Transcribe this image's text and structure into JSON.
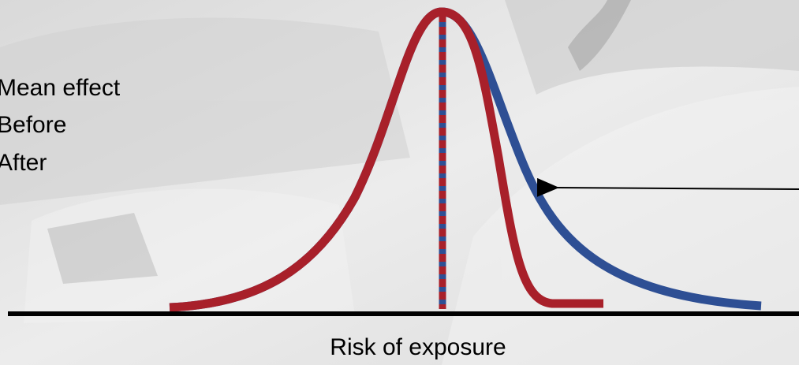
{
  "legend": [
    "Mean effect",
    "Before",
    "After"
  ],
  "x_axis_label": "Risk of exposure"
}
